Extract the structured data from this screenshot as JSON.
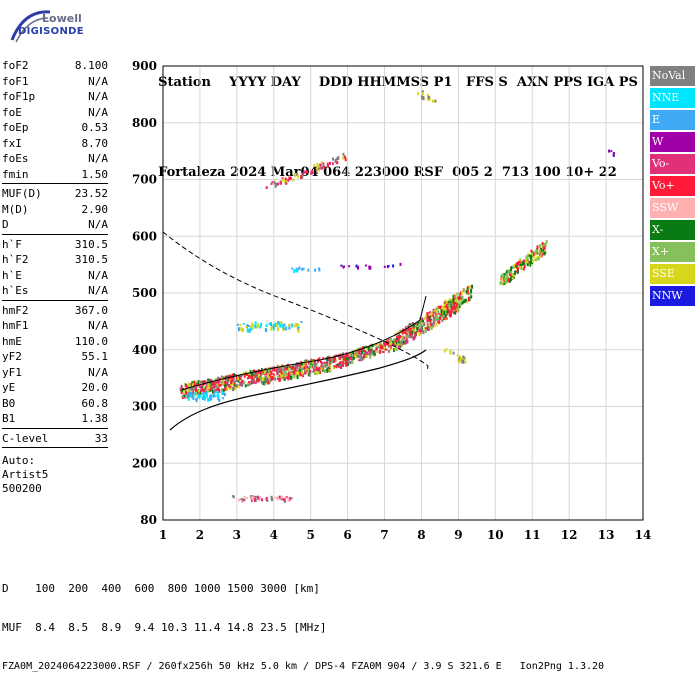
{
  "logo": {
    "line1": "Lowell",
    "line2": "DIGISONDE"
  },
  "header": {
    "labels": [
      "Station",
      "YYYY",
      "DAY",
      "DDD",
      "HHMMSS",
      "P1",
      "FFS",
      "S",
      "AXN",
      "PPS",
      "IGA",
      "PS"
    ],
    "values": [
      "Fortaleza",
      "2024",
      "Mar04",
      "064",
      "223000",
      "RSF",
      "005",
      "2",
      "713",
      "100",
      "10+",
      "22"
    ]
  },
  "params": {
    "group1": [
      {
        "name": "foF2",
        "value": "8.100"
      },
      {
        "name": "foF1",
        "value": "N/A"
      },
      {
        "name": "foF1p",
        "value": "N/A"
      },
      {
        "name": "foE",
        "value": "N/A"
      },
      {
        "name": "foEp",
        "value": "0.53"
      },
      {
        "name": "fxI",
        "value": "8.70"
      },
      {
        "name": "foEs",
        "value": "N/A"
      },
      {
        "name": "fmin",
        "value": "1.50"
      }
    ],
    "group2": [
      {
        "name": "MUF(D)",
        "value": "23.52"
      },
      {
        "name": "M(D)",
        "value": "2.90"
      },
      {
        "name": "D",
        "value": "N/A"
      }
    ],
    "group3": [
      {
        "name": "h`F",
        "value": "310.5"
      },
      {
        "name": "h`F2",
        "value": "310.5"
      },
      {
        "name": "h`E",
        "value": "N/A"
      },
      {
        "name": "h`Es",
        "value": "N/A"
      }
    ],
    "group4": [
      {
        "name": "hmF2",
        "value": "367.0"
      },
      {
        "name": "hmF1",
        "value": "N/A"
      },
      {
        "name": "hmE",
        "value": "110.0"
      },
      {
        "name": "yF2",
        "value": "55.1"
      },
      {
        "name": "yF1",
        "value": "N/A"
      },
      {
        "name": "yE",
        "value": "20.0"
      },
      {
        "name": "B0",
        "value": "60.8"
      },
      {
        "name": "B1",
        "value": "1.38"
      }
    ],
    "group5": [
      {
        "name": "C-level",
        "value": "33"
      }
    ],
    "auto": [
      "Auto:",
      "Artist5",
      "500200"
    ]
  },
  "legend": [
    {
      "label": "NoVal",
      "color": "#808080"
    },
    {
      "label": "NNE",
      "color": "#00e5ff"
    },
    {
      "label": "E",
      "color": "#3fa9f5"
    },
    {
      "label": "W",
      "color": "#a000a8"
    },
    {
      "label": "Vo-",
      "color": "#e0307a"
    },
    {
      "label": "Vo+",
      "color": "#ff1a3a"
    },
    {
      "label": "SSW",
      "color": "#ffb0b0"
    },
    {
      "label": "X-",
      "color": "#0a7a14"
    },
    {
      "label": "X+",
      "color": "#86c05a"
    },
    {
      "label": "SSE",
      "color": "#d6d61a"
    },
    {
      "label": "NNW",
      "color": "#1a1ae0"
    }
  ],
  "axes": {
    "x_ticks": [
      "1",
      "2",
      "3",
      "4",
      "5",
      "6",
      "7",
      "8",
      "9",
      "10",
      "11",
      "12",
      "13",
      "14"
    ],
    "y_ticks": [
      "80",
      "200",
      "300",
      "400",
      "500",
      "600",
      "700",
      "800",
      "900"
    ]
  },
  "footer": {
    "line1": "D    100  200  400  600  800 1000 1500 3000 [km]",
    "line2": "MUF  8.4  8.5  8.9  9.4 10.3 11.4 14.8 23.5 [MHz]",
    "line3": "FZA0M_2024064223000.RSF / 260fx256h 50 kHz 5.0 km / DPS-4 FZA0M 904 / 3.9 S 321.6 E   Ion2Png 1.3.20"
  }
}
